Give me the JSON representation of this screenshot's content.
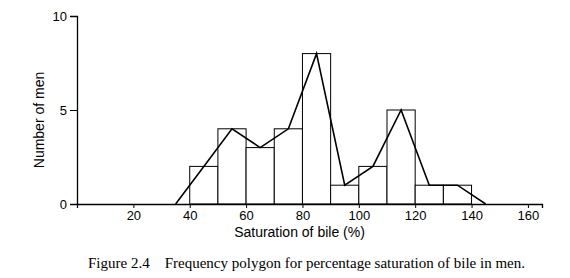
{
  "chart_data": {
    "type": "histogram",
    "title": "Figure 2.4    Frequency polygon for percentage saturation of bile in men.",
    "x_label": "Saturation of bile (%)",
    "y_label": "Number of men",
    "bins": [
      40,
      50,
      60,
      70,
      80,
      90,
      100,
      110,
      120,
      130,
      140
    ],
    "values": [
      2,
      4,
      3,
      4,
      8,
      1,
      2,
      5,
      1,
      1
    ],
    "color": "#ffffff",
    "series": [
      {
        "type": "line",
        "color": "#000000",
        "x": [
          35,
          45,
          55,
          65,
          75,
          85,
          95,
          105,
          115,
          125,
          135,
          145
        ],
        "values": [
          0,
          2,
          4,
          3,
          4,
          8,
          1,
          2,
          5,
          1,
          1,
          0
        ]
      }
    ],
    "xlim": [
      0,
      165
    ],
    "xticks": [
      20,
      40,
      60,
      80,
      100,
      120,
      140,
      160
    ],
    "ylim": [
      0,
      10
    ],
    "yticks": [
      0,
      5,
      10
    ],
    "grid": false
  }
}
